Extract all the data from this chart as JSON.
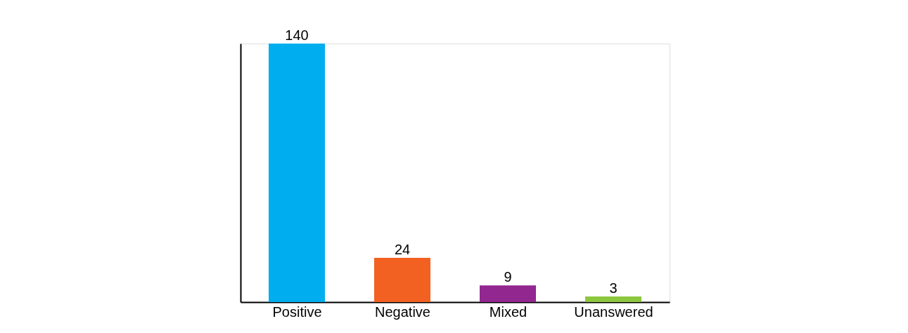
{
  "chart_data": {
    "type": "bar",
    "categories": [
      "Positive",
      "Negative",
      "Mixed",
      "Unanswered"
    ],
    "values": [
      140,
      24,
      9,
      3
    ],
    "colors": [
      "#00adef",
      "#f26122",
      "#92278f",
      "#8dc63f"
    ],
    "data_labels": true
  }
}
